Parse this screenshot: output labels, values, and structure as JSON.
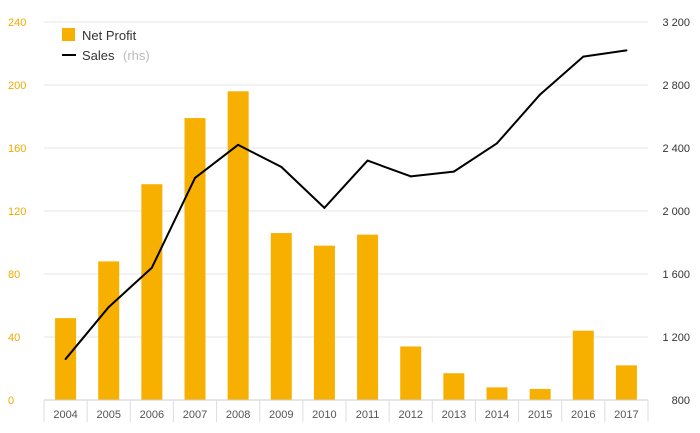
{
  "chart_data": {
    "type": "bar+line",
    "categories": [
      "2004",
      "2005",
      "2006",
      "2007",
      "2008",
      "2009",
      "2010",
      "2011",
      "2012",
      "2013",
      "2014",
      "2015",
      "2016",
      "2017"
    ],
    "series": [
      {
        "name": "Net Profit",
        "type": "bar",
        "axis": "left",
        "color": "#F7B000",
        "values": [
          52,
          88,
          137,
          179,
          196,
          106,
          98,
          105,
          34,
          17,
          8,
          7,
          44,
          22
        ]
      },
      {
        "name": "Sales",
        "note": "(rhs)",
        "type": "line",
        "axis": "right",
        "color": "#000000",
        "values": [
          1060,
          1390,
          1640,
          2210,
          2420,
          2280,
          2020,
          2320,
          2220,
          2250,
          2430,
          2740,
          2980,
          3020
        ]
      }
    ],
    "left_axis": {
      "ylim": [
        0,
        240
      ],
      "ticks": [
        0,
        40,
        80,
        120,
        160,
        200,
        240
      ],
      "tick_labels": [
        "0",
        "40",
        "80",
        "120",
        "160",
        "200",
        "240"
      ],
      "color": "#F0AA00"
    },
    "right_axis": {
      "ylim": [
        800,
        3200
      ],
      "ticks": [
        800,
        1200,
        1600,
        2000,
        2400,
        2800,
        3200
      ],
      "tick_labels": [
        "800",
        "1 200",
        "1 600",
        "2 000",
        "2 400",
        "2 800",
        "3 200"
      ],
      "color": "#333333"
    },
    "grid": true,
    "legend_position": "top-left"
  }
}
